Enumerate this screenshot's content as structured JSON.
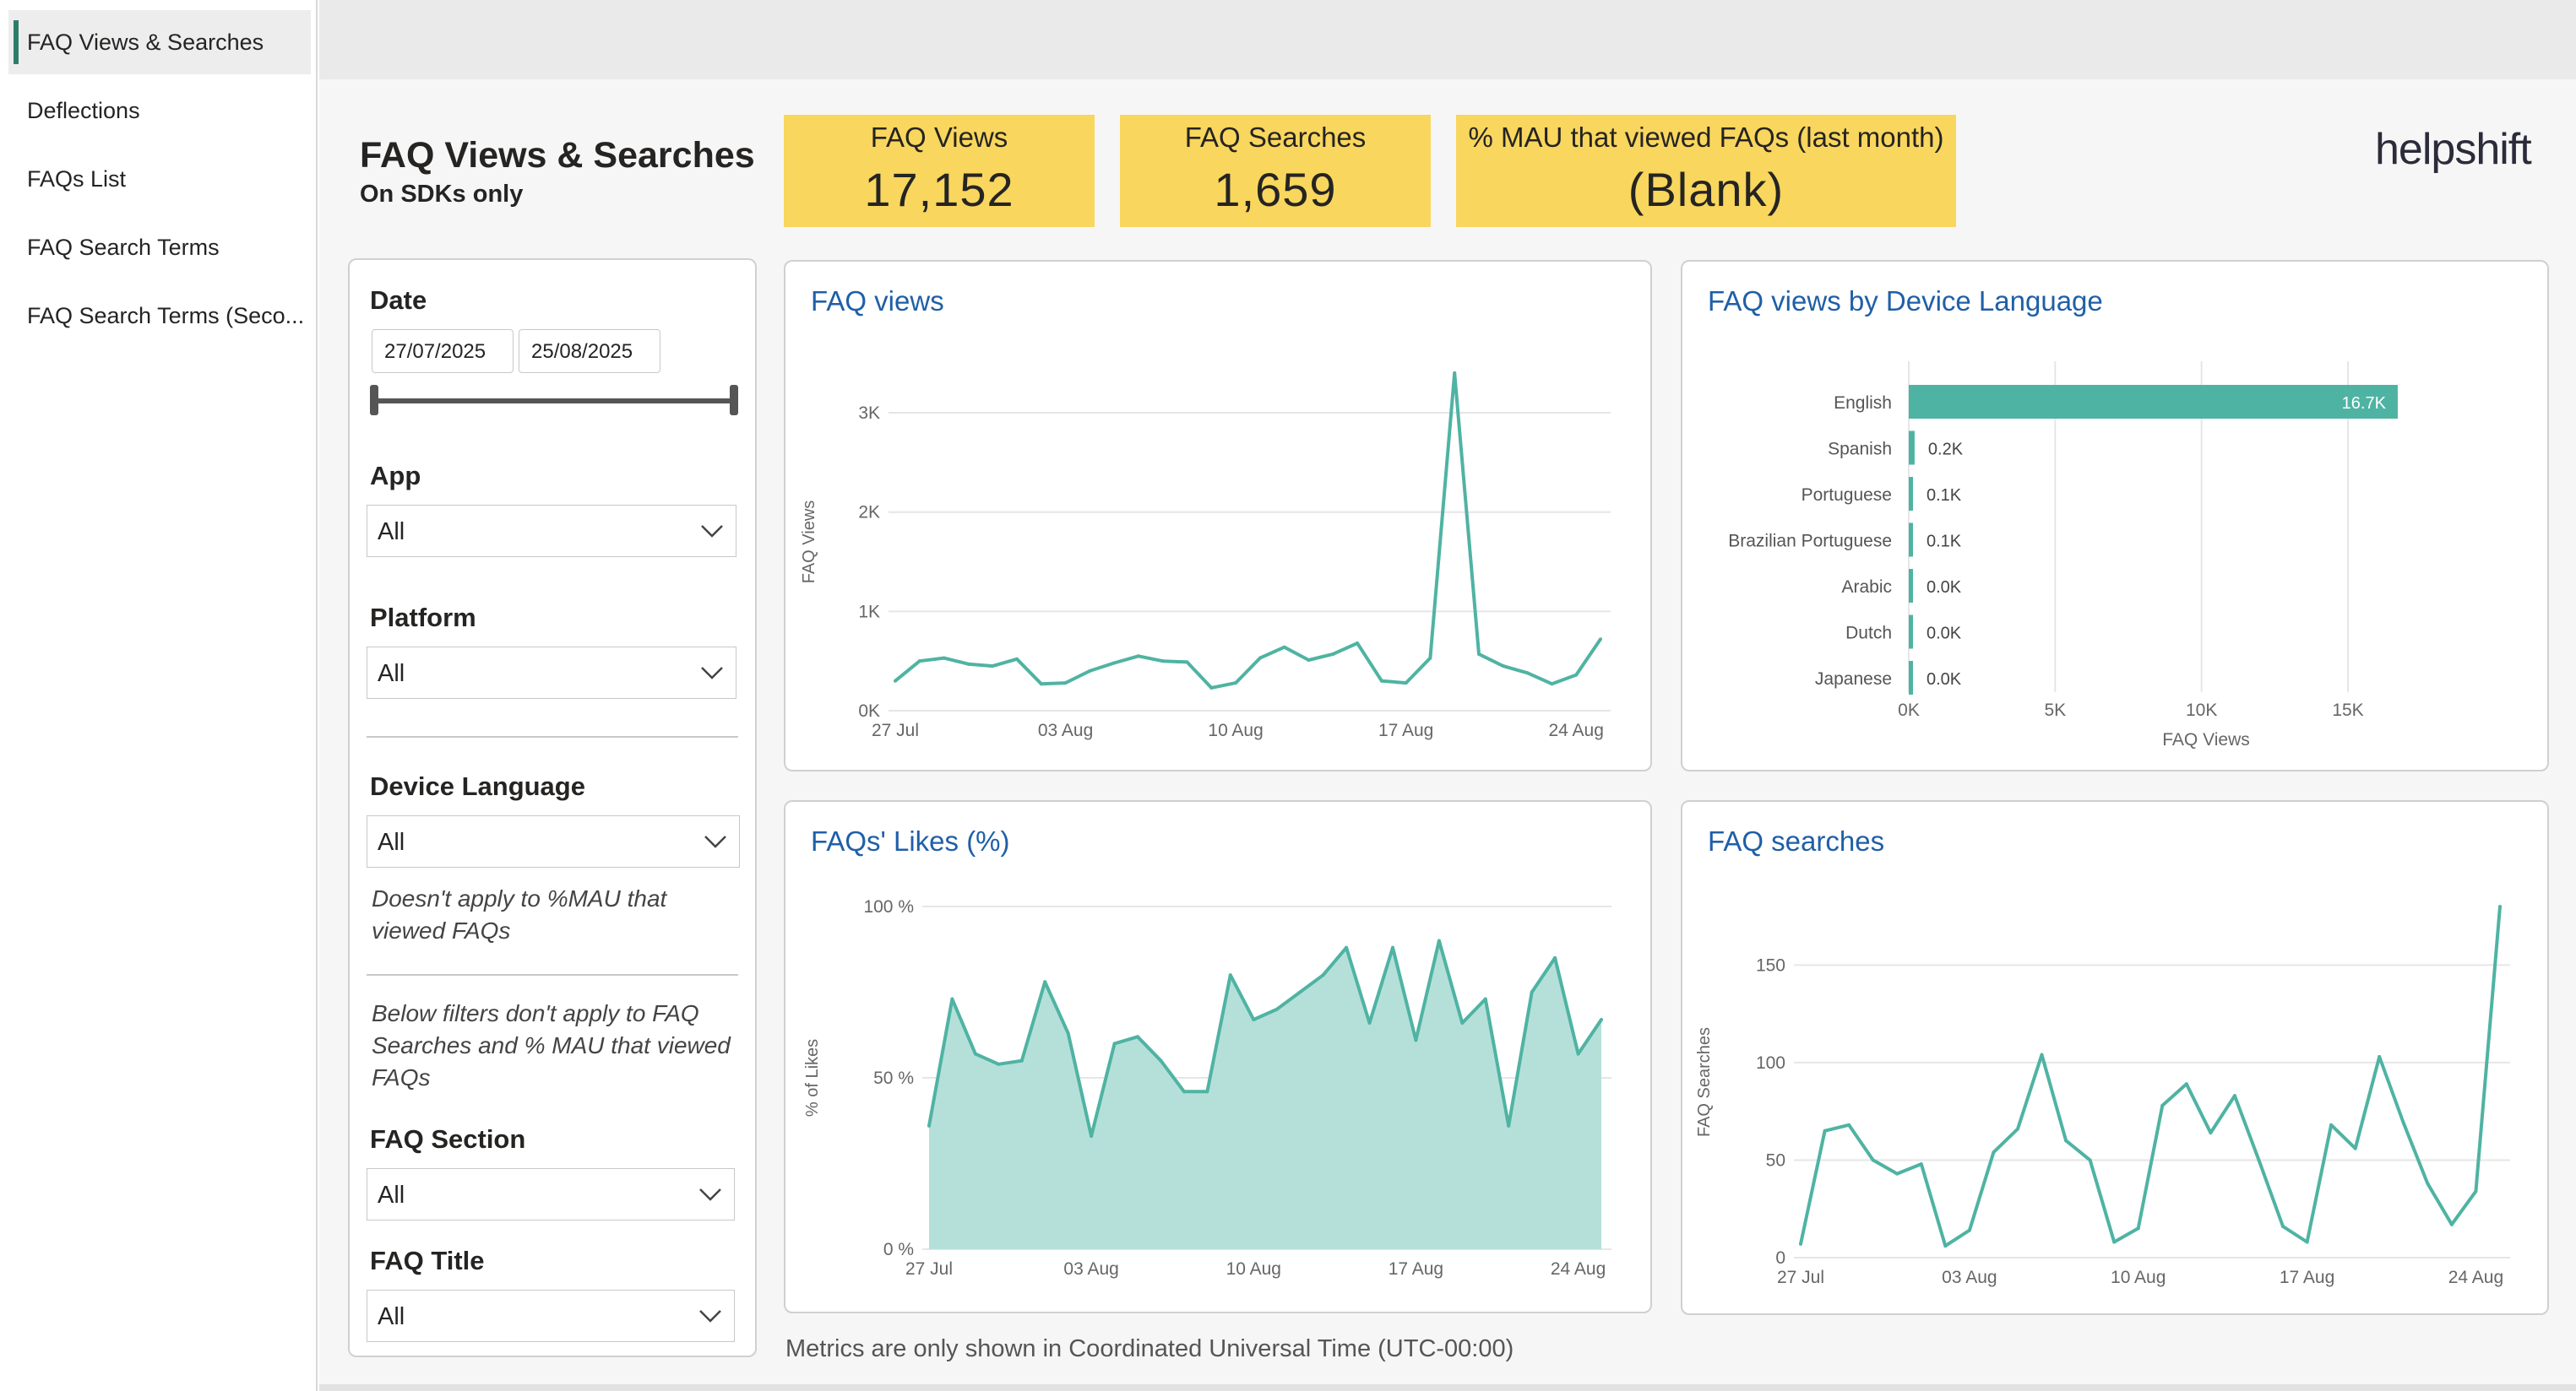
{
  "nav": {
    "items": [
      {
        "label": "FAQ Views & Searches",
        "active": true
      },
      {
        "label": "Deflections",
        "active": false
      },
      {
        "label": "FAQs List",
        "active": false
      },
      {
        "label": "FAQ Search Terms",
        "active": false
      },
      {
        "label": "FAQ Search Terms (Seco...",
        "active": false
      }
    ]
  },
  "header": {
    "title": "FAQ Views & Searches",
    "subtitle": "On SDKs only",
    "logo_text": "helpshift",
    "kpis": [
      {
        "label": "FAQ Views",
        "value": "17,152"
      },
      {
        "label": "FAQ Searches",
        "value": "1,659"
      },
      {
        "label": "% MAU that viewed FAQs (last month)",
        "value": "(Blank)"
      }
    ],
    "colors": {
      "kpi_bg": "#f9d65d",
      "accent": "#4fb3a3",
      "title_blue": "#1f5fa8"
    }
  },
  "filters": {
    "date_label": "Date",
    "date_start": "27/07/2025",
    "date_end": "25/08/2025",
    "app_label": "App",
    "app_value": "All",
    "platform_label": "Platform",
    "platform_value": "All",
    "device_language_label": "Device Language",
    "device_language_value": "All",
    "device_language_note": "Doesn't apply to %MAU that viewed FAQs",
    "below_note": "Below filters don't apply to FAQ Searches and % MAU that viewed FAQs",
    "faq_section_label": "FAQ Section",
    "faq_section_value": "All",
    "faq_title_label": "FAQ Title",
    "faq_title_value": "All"
  },
  "footer_note": "Metrics are only shown in Coordinated Universal Time (UTC-00:00)",
  "chart_data": [
    {
      "id": "faq_views",
      "type": "line",
      "title": "FAQ views",
      "xlabel": "",
      "ylabel": "FAQ Views",
      "x_tick_labels": [
        "27 Jul",
        "03 Aug",
        "10 Aug",
        "17 Aug",
        "24 Aug"
      ],
      "y_ticks": [
        0,
        1000,
        2000,
        3000
      ],
      "y_tick_labels": [
        "0K",
        "1K",
        "2K",
        "3K"
      ],
      "ylim": [
        0,
        3400
      ],
      "grid": true,
      "values": [
        300,
        500,
        530,
        470,
        450,
        520,
        270,
        280,
        400,
        480,
        550,
        500,
        490,
        230,
        280,
        530,
        640,
        510,
        570,
        680,
        300,
        280,
        530,
        3400,
        570,
        450,
        380,
        270,
        360,
        720
      ]
    },
    {
      "id": "faq_views_by_language",
      "type": "bar",
      "orientation": "horizontal",
      "title": "FAQ views by Device Language",
      "xlabel": "FAQ Views",
      "ylabel": "",
      "categories": [
        "English",
        "Spanish",
        "Portuguese",
        "Brazilian Portuguese",
        "Arabic",
        "Dutch",
        "Japanese"
      ],
      "values": [
        16700,
        200,
        100,
        100,
        0,
        0,
        0
      ],
      "data_labels": [
        "16.7K",
        "0.2K",
        "0.1K",
        "0.1K",
        "0.0K",
        "0.0K",
        "0.0K"
      ],
      "x_ticks": [
        0,
        5000,
        10000,
        15000
      ],
      "x_tick_labels": [
        "0K",
        "5K",
        "10K",
        "15K"
      ],
      "xlim": [
        0,
        18000
      ],
      "grid": true
    },
    {
      "id": "faq_likes",
      "type": "area",
      "title": "FAQs' Likes (%)",
      "xlabel": "",
      "ylabel": "% of Likes",
      "x_tick_labels": [
        "27 Jul",
        "03 Aug",
        "10 Aug",
        "17 Aug",
        "24 Aug"
      ],
      "y_ticks": [
        0,
        50,
        100
      ],
      "y_tick_labels": [
        "0 %",
        "50 %",
        "100 %"
      ],
      "ylim": [
        0,
        100
      ],
      "grid": true,
      "values": [
        36,
        73,
        57,
        54,
        55,
        78,
        63,
        33,
        60,
        62,
        55,
        46,
        46,
        80,
        67,
        70,
        75,
        80,
        88,
        66,
        88,
        61,
        90,
        66,
        73,
        36,
        75,
        85,
        57,
        67
      ]
    },
    {
      "id": "faq_searches",
      "type": "line",
      "title": "FAQ searches",
      "xlabel": "",
      "ylabel": "FAQ Searches",
      "x_tick_labels": [
        "27 Jul",
        "03 Aug",
        "10 Aug",
        "17 Aug",
        "24 Aug"
      ],
      "y_ticks": [
        0,
        50,
        100,
        150
      ],
      "y_tick_labels": [
        "0",
        "50",
        "100",
        "150"
      ],
      "ylim": [
        0,
        180
      ],
      "grid": true,
      "values": [
        7,
        65,
        68,
        50,
        43,
        48,
        6,
        14,
        54,
        66,
        104,
        60,
        50,
        8,
        15,
        78,
        89,
        64,
        83,
        50,
        16,
        8,
        68,
        56,
        103,
        69,
        38,
        17,
        34,
        180
      ]
    }
  ]
}
